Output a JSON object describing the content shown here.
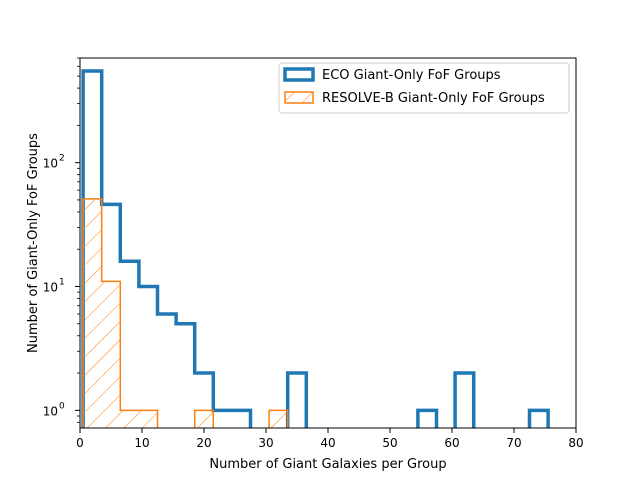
{
  "chart_data": {
    "type": "step-histogram",
    "xlabel": "Number of Giant Galaxies per Group",
    "ylabel": "Number of Giant-Only FoF Groups",
    "xlim": [
      0,
      80
    ],
    "ylim": [
      0.72,
      700
    ],
    "yscale": "log",
    "grid": false,
    "legend_position": "top-right",
    "xticks": [
      0,
      10,
      20,
      30,
      40,
      50,
      60,
      70,
      80
    ],
    "yticks": [
      {
        "value": 1,
        "label": "10",
        "exp": "0"
      },
      {
        "value": 10,
        "label": "10",
        "exp": "1"
      },
      {
        "value": 100,
        "label": "10",
        "exp": "2"
      }
    ],
    "series": [
      {
        "name": "ECO Giant-Only FoF Groups",
        "color": "#1f77b4",
        "hatch": false,
        "bins": [
          {
            "x0": 0.5,
            "x1": 3.5,
            "count": 550
          },
          {
            "x0": 3.5,
            "x1": 6.5,
            "count": 46
          },
          {
            "x0": 6.5,
            "x1": 9.5,
            "count": 16
          },
          {
            "x0": 9.5,
            "x1": 12.5,
            "count": 10
          },
          {
            "x0": 12.5,
            "x1": 15.5,
            "count": 6
          },
          {
            "x0": 15.5,
            "x1": 18.5,
            "count": 5
          },
          {
            "x0": 18.5,
            "x1": 21.5,
            "count": 2
          },
          {
            "x0": 21.5,
            "x1": 27.5,
            "count": 1
          },
          {
            "x0": 33.5,
            "x1": 36.5,
            "count": 2
          },
          {
            "x0": 54.5,
            "x1": 57.5,
            "count": 1
          },
          {
            "x0": 60.5,
            "x1": 63.5,
            "count": 2
          },
          {
            "x0": 72.5,
            "x1": 75.5,
            "count": 1
          }
        ]
      },
      {
        "name": "RESOLVE-B Giant-Only FoF Groups",
        "color": "#ff7f0e",
        "hatch": true,
        "bins": [
          {
            "x0": 0.5,
            "x1": 3.5,
            "count": 51
          },
          {
            "x0": 3.5,
            "x1": 6.5,
            "count": 11
          },
          {
            "x0": 6.5,
            "x1": 12.5,
            "count": 1
          },
          {
            "x0": 18.5,
            "x1": 21.5,
            "count": 1
          },
          {
            "x0": 30.5,
            "x1": 33.5,
            "count": 1
          }
        ]
      }
    ]
  }
}
